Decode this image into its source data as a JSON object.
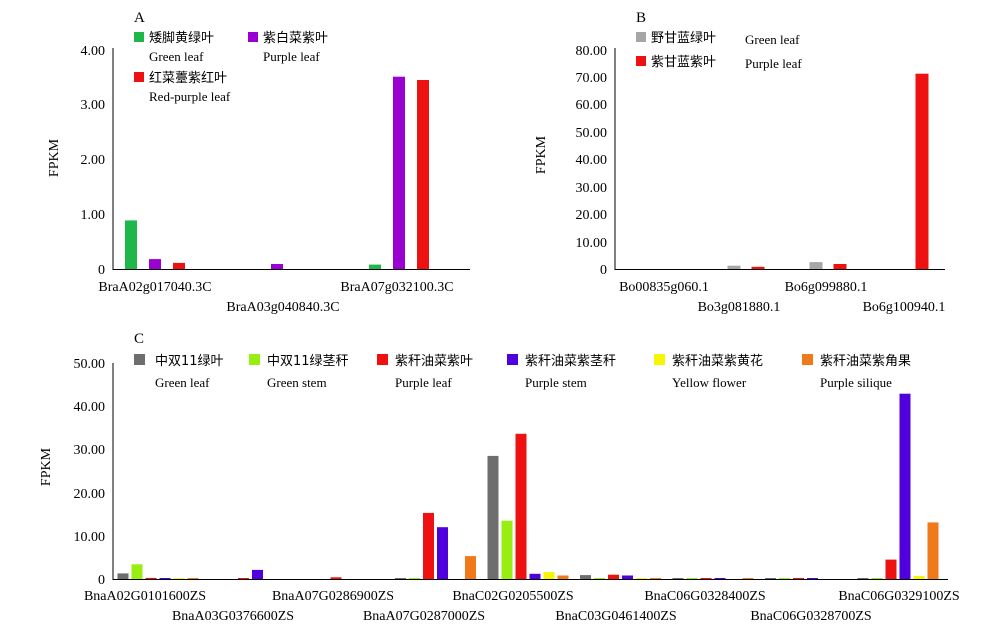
{
  "chart_data": [
    {
      "panel_label": "A",
      "type": "bar",
      "ylabel": "FPKM",
      "ylim": [
        0,
        4
      ],
      "yticks": [
        "0",
        "1.00",
        "2.00",
        "3.00",
        "4.00"
      ],
      "categories": [
        "BraA02g017040.3C",
        "BraA03g040840.3C",
        "BraA07g032100.3C"
      ],
      "legend_placement": "top-left",
      "series": [
        {
          "name": "矮脚黄绿叶",
          "name_en": "Green leaf",
          "color": "#1FB74A",
          "values": [
            0.88,
            0,
            0.08
          ]
        },
        {
          "name": "紫白菜紫叶",
          "name_en": "Purple leaf",
          "color": "#9B00D3",
          "values": [
            0.18,
            0.09,
            3.48
          ]
        },
        {
          "name": "红菜薹紫红叶",
          "name_en": "Red-purple leaf",
          "color": "#EE1111",
          "values": [
            0.11,
            0,
            3.42
          ]
        }
      ]
    },
    {
      "panel_label": "B",
      "type": "bar",
      "ylabel": "FPKM",
      "ylim": [
        0,
        80
      ],
      "yticks": [
        "0",
        "10.00",
        "20.00",
        "30.00",
        "40.00",
        "50.00",
        "60.00",
        "70.00",
        "80.00"
      ],
      "categories": [
        "Bo00835g060.1",
        "Bo3g081880.1",
        "Bo6g099880.1",
        "Bo6g100940.1"
      ],
      "legend_placement": "top-left",
      "series": [
        {
          "name": "野甘蓝绿叶",
          "name_en": "Green leaf",
          "color": "#A6A6A6",
          "values": [
            0,
            1.2,
            2.5,
            0
          ]
        },
        {
          "name": "紫甘蓝紫叶",
          "name_en": "Purple leaf",
          "color": "#EE1111",
          "values": [
            0,
            0.8,
            1.8,
            70.7
          ]
        }
      ]
    },
    {
      "panel_label": "C",
      "type": "bar",
      "ylabel": "FPKM",
      "ylim": [
        0,
        50
      ],
      "yticks": [
        "0",
        "10.00",
        "20.00",
        "30.00",
        "40.00",
        "50.00"
      ],
      "categories": [
        "BnaA02G0101600ZS",
        "BnaA03G0376600ZS",
        "BnaA07G0286900ZS",
        "BnaA07G0287000ZS",
        "BnaC02G0205500ZS",
        "BnaC03G0461400ZS",
        "BnaC06G0328400ZS",
        "BnaC06G0328700ZS",
        "BnaC06G0329100ZS"
      ],
      "legend_placement": "top",
      "series": [
        {
          "name": "中双11绿叶",
          "name_en": "Green leaf",
          "color": "#6E6E6E",
          "values": [
            1.3,
            0,
            0,
            0.15,
            28.5,
            0.9,
            0.1,
            0.1,
            0.1
          ]
        },
        {
          "name": "中双11绿茎秆",
          "name_en": "Green stem",
          "color": "#99EE11",
          "values": [
            3.4,
            0,
            0,
            0.1,
            13.5,
            0.2,
            0.05,
            0.05,
            0.1
          ]
        },
        {
          "name": "紫秆油菜紫叶",
          "name_en": "Purple leaf",
          "color": "#EE1111",
          "values": [
            0.25,
            0.1,
            0.4,
            15.3,
            33.6,
            1.0,
            0.2,
            0.05,
            4.5
          ]
        },
        {
          "name": "紫秆油菜紫茎秆",
          "name_en": "Purple stem",
          "color": "#4F00DD",
          "values": [
            0.2,
            2.1,
            0,
            12.0,
            1.2,
            0.8,
            0.05,
            0.1,
            42.9
          ]
        },
        {
          "name": "紫秆油菜紫黄花",
          "name_en": "Yellow flower",
          "color": "#F6F600",
          "values": [
            0.1,
            0,
            0,
            0,
            1.6,
            0.1,
            0,
            0,
            0.7
          ]
        },
        {
          "name": "紫秆油菜紫角果",
          "name_en": "Purple silique",
          "color": "#F07A1A",
          "values": [
            0.1,
            0,
            0,
            5.3,
            0.8,
            0.1,
            0.05,
            0,
            13.1
          ]
        }
      ]
    }
  ]
}
